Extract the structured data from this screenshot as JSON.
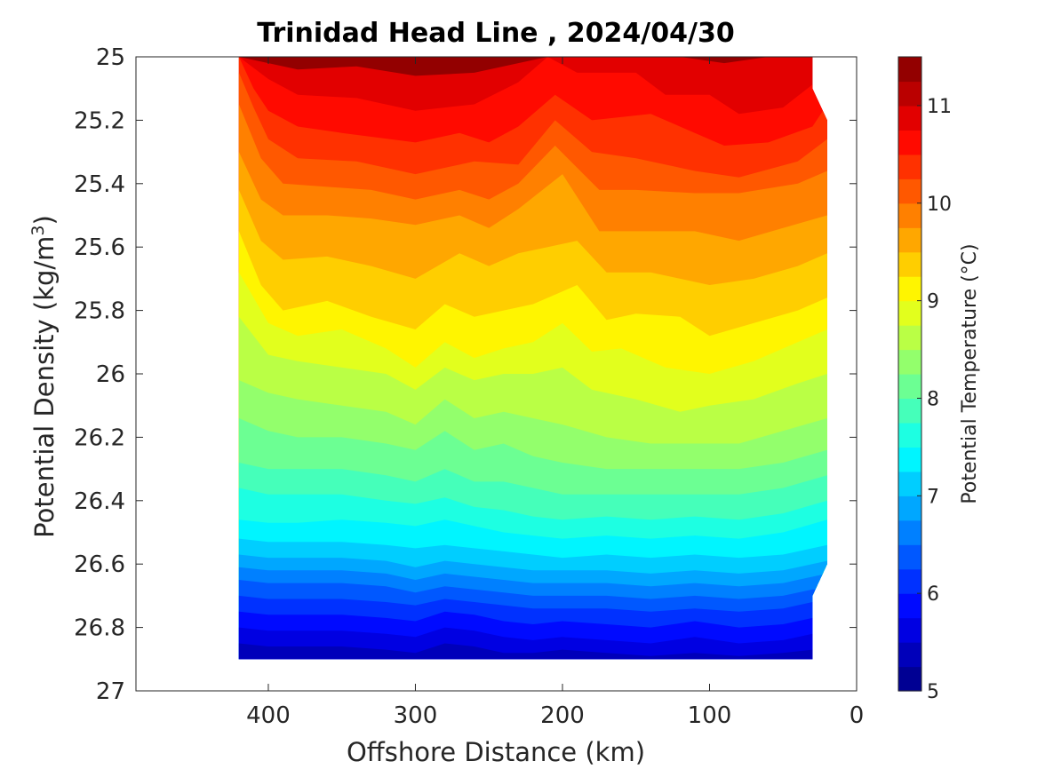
{
  "chart_data": {
    "type": "heatmap",
    "subtype": "filled-contour",
    "title": "Trinidad Head Line , 2024/04/30",
    "xlabel": "Offshore Distance (km)",
    "ylabel": "Potential Density (kg/m",
    "ylabel_superscript": "3",
    "ylabel_close": ")",
    "xlim": [
      490,
      0
    ],
    "ylim": [
      27,
      25
    ],
    "x_reversed": true,
    "y_reversed": true,
    "xticks": [
      400,
      300,
      200,
      100,
      0
    ],
    "xtick_labels": [
      "400",
      "300",
      "200",
      "100",
      "0"
    ],
    "yticks": [
      25,
      25.2,
      25.4,
      25.6,
      25.8,
      26,
      26.2,
      26.4,
      26.6,
      26.8,
      27
    ],
    "ytick_labels": [
      "25",
      "25.2",
      "25.4",
      "25.6",
      "25.8",
      "26",
      "26.2",
      "26.4",
      "26.6",
      "26.8",
      "27"
    ],
    "colorbar": {
      "label": "Potential Temperature (°C)",
      "range": [
        5,
        11.5
      ],
      "ticks": [
        5,
        6,
        7,
        8,
        9,
        10,
        11
      ],
      "tick_labels": [
        "5",
        "6",
        "7",
        "8",
        "9",
        "10",
        "11"
      ],
      "level_step": 0.25,
      "colormap": "jet"
    },
    "data_extent": {
      "x_stations_km": [
        420,
        400,
        380,
        360,
        340,
        320,
        300,
        280,
        260,
        240,
        220,
        200,
        180,
        160,
        140,
        120,
        100,
        80,
        60,
        40,
        30
      ],
      "sigma_min": 25,
      "sigma_max": 26.9
    },
    "isotherms": [
      {
        "temp": 11,
        "x": [
          420,
          400,
          380,
          340,
          300,
          260,
          230,
          210,
          190,
          140,
          120,
          90,
          60,
          35
        ],
        "sigma": [
          25.0,
          25.02,
          25.04,
          25.03,
          25.06,
          25.05,
          25.02,
          25.0,
          25.0,
          25.0,
          25.0,
          25.02,
          25.0,
          25.0
        ]
      },
      {
        "temp": 10.75,
        "x": [
          420,
          400,
          380,
          340,
          300,
          260,
          230,
          210,
          190,
          150,
          130,
          100,
          80,
          50,
          28
        ],
        "sigma": [
          25.0,
          25.07,
          25.12,
          25.13,
          25.17,
          25.15,
          25.08,
          25.0,
          25.05,
          25.05,
          25.12,
          25.12,
          25.18,
          25.16,
          25.08
        ]
      },
      {
        "temp": 10.5,
        "x": [
          420,
          410,
          400,
          380,
          350,
          300,
          270,
          250,
          230,
          205,
          180,
          140,
          110,
          90,
          60,
          30,
          20
        ],
        "sigma": [
          25.0,
          25.1,
          25.17,
          25.22,
          25.24,
          25.27,
          25.24,
          25.27,
          25.22,
          25.12,
          25.2,
          25.18,
          25.24,
          25.28,
          25.27,
          25.22,
          25.15
        ]
      },
      {
        "temp": 10.25,
        "x": [
          420,
          410,
          400,
          380,
          340,
          300,
          260,
          230,
          205,
          180,
          150,
          110,
          80,
          40,
          20
        ],
        "sigma": [
          25.05,
          25.16,
          25.26,
          25.32,
          25.33,
          25.37,
          25.33,
          25.34,
          25.2,
          25.3,
          25.32,
          25.36,
          25.38,
          25.33,
          25.26
        ]
      },
      {
        "temp": 10,
        "x": [
          420,
          405,
          390,
          360,
          330,
          300,
          270,
          250,
          230,
          205,
          175,
          150,
          110,
          80,
          40,
          20
        ],
        "sigma": [
          25.15,
          25.32,
          25.4,
          25.41,
          25.42,
          25.45,
          25.42,
          25.45,
          25.4,
          25.28,
          25.42,
          25.42,
          25.43,
          25.43,
          25.4,
          25.36
        ]
      },
      {
        "temp": 9.75,
        "x": [
          420,
          405,
          390,
          360,
          330,
          300,
          270,
          250,
          230,
          200,
          175,
          150,
          110,
          80,
          50,
          20
        ],
        "sigma": [
          25.3,
          25.45,
          25.5,
          25.5,
          25.51,
          25.53,
          25.5,
          25.54,
          25.48,
          25.37,
          25.55,
          25.55,
          25.55,
          25.58,
          25.54,
          25.5
        ]
      },
      {
        "temp": 9.5,
        "x": [
          420,
          405,
          390,
          360,
          330,
          300,
          270,
          250,
          230,
          210,
          190,
          170,
          140,
          100,
          70,
          40,
          20
        ],
        "sigma": [
          25.42,
          25.58,
          25.64,
          25.63,
          25.66,
          25.7,
          25.62,
          25.66,
          25.62,
          25.6,
          25.58,
          25.68,
          25.68,
          25.72,
          25.7,
          25.66,
          25.62
        ]
      },
      {
        "temp": 9.25,
        "x": [
          420,
          405,
          390,
          360,
          330,
          300,
          280,
          260,
          240,
          220,
          190,
          170,
          150,
          120,
          100,
          70,
          40,
          20
        ],
        "sigma": [
          25.55,
          25.72,
          25.8,
          25.77,
          25.82,
          25.86,
          25.78,
          25.82,
          25.8,
          25.78,
          25.72,
          25.83,
          25.81,
          25.82,
          25.88,
          25.84,
          25.8,
          25.76
        ]
      },
      {
        "temp": 9,
        "x": [
          420,
          400,
          380,
          350,
          320,
          300,
          280,
          260,
          240,
          220,
          200,
          180,
          160,
          130,
          100,
          70,
          40,
          20
        ],
        "sigma": [
          25.68,
          25.84,
          25.88,
          25.86,
          25.92,
          25.98,
          25.9,
          25.95,
          25.92,
          25.9,
          25.84,
          25.93,
          25.92,
          25.98,
          26.0,
          25.96,
          25.9,
          25.86
        ]
      },
      {
        "temp": 8.75,
        "x": [
          420,
          400,
          380,
          350,
          320,
          300,
          280,
          260,
          240,
          220,
          200,
          180,
          150,
          120,
          100,
          70,
          40,
          20
        ],
        "sigma": [
          25.82,
          25.94,
          25.96,
          25.98,
          26.0,
          26.05,
          25.98,
          26.02,
          26.0,
          26.0,
          25.98,
          26.05,
          26.08,
          26.12,
          26.1,
          26.08,
          26.03,
          26.0
        ]
      },
      {
        "temp": 8.5,
        "x": [
          420,
          400,
          380,
          350,
          320,
          300,
          280,
          260,
          240,
          220,
          200,
          170,
          140,
          110,
          80,
          50,
          20
        ],
        "sigma": [
          26.02,
          26.06,
          26.08,
          26.1,
          26.12,
          26.16,
          26.08,
          26.14,
          26.12,
          26.14,
          26.16,
          26.2,
          26.22,
          26.22,
          26.22,
          26.18,
          26.14
        ]
      },
      {
        "temp": 8.25,
        "x": [
          420,
          400,
          380,
          350,
          320,
          300,
          280,
          260,
          240,
          220,
          200,
          170,
          140,
          110,
          80,
          50,
          20
        ],
        "sigma": [
          26.14,
          26.18,
          26.2,
          26.2,
          26.22,
          26.24,
          26.18,
          26.24,
          26.22,
          26.26,
          26.28,
          26.3,
          26.3,
          26.3,
          26.3,
          26.28,
          26.24
        ]
      },
      {
        "temp": 8,
        "x": [
          420,
          400,
          380,
          350,
          320,
          300,
          280,
          260,
          240,
          220,
          200,
          170,
          140,
          110,
          80,
          50,
          20
        ],
        "sigma": [
          26.28,
          26.3,
          26.3,
          26.3,
          26.32,
          26.34,
          26.3,
          26.34,
          26.34,
          26.36,
          26.38,
          26.38,
          26.38,
          26.38,
          26.38,
          26.36,
          26.32
        ]
      },
      {
        "temp": 7.75,
        "x": [
          420,
          400,
          380,
          350,
          320,
          300,
          280,
          260,
          240,
          220,
          200,
          170,
          140,
          110,
          80,
          50,
          20
        ],
        "sigma": [
          26.36,
          26.38,
          26.38,
          26.38,
          26.4,
          26.41,
          26.39,
          26.42,
          26.43,
          26.45,
          26.46,
          26.45,
          26.46,
          26.45,
          26.46,
          26.44,
          26.4
        ]
      },
      {
        "temp": 7.5,
        "x": [
          420,
          400,
          380,
          350,
          320,
          300,
          280,
          260,
          240,
          220,
          200,
          170,
          140,
          110,
          80,
          50,
          20
        ],
        "sigma": [
          26.46,
          26.47,
          26.47,
          26.46,
          26.47,
          26.48,
          26.46,
          26.48,
          26.5,
          26.51,
          26.52,
          26.51,
          26.52,
          26.51,
          26.52,
          26.5,
          26.46
        ]
      },
      {
        "temp": 7.25,
        "x": [
          420,
          400,
          380,
          350,
          320,
          300,
          280,
          260,
          240,
          220,
          200,
          170,
          140,
          110,
          80,
          50,
          20
        ],
        "sigma": [
          26.52,
          26.53,
          26.53,
          26.53,
          26.54,
          26.55,
          26.54,
          26.55,
          26.56,
          26.57,
          26.58,
          26.57,
          26.58,
          26.57,
          26.58,
          26.57,
          26.54
        ]
      },
      {
        "temp": 7,
        "x": [
          420,
          400,
          380,
          350,
          320,
          300,
          280,
          260,
          240,
          220,
          200,
          170,
          140,
          110,
          80,
          50,
          20
        ],
        "sigma": [
          26.57,
          26.58,
          26.58,
          26.58,
          26.59,
          26.61,
          26.59,
          26.6,
          26.61,
          26.62,
          26.62,
          26.62,
          26.63,
          26.62,
          26.63,
          26.62,
          26.59
        ]
      },
      {
        "temp": 6.75,
        "x": [
          420,
          400,
          380,
          350,
          320,
          300,
          280,
          260,
          240,
          220,
          200,
          170,
          140,
          110,
          80,
          50,
          20
        ],
        "sigma": [
          26.61,
          26.62,
          26.62,
          26.62,
          26.63,
          26.65,
          26.63,
          26.64,
          26.65,
          26.66,
          26.66,
          26.66,
          26.67,
          26.66,
          26.67,
          26.66,
          26.63
        ]
      },
      {
        "temp": 6.5,
        "x": [
          420,
          400,
          380,
          350,
          320,
          300,
          280,
          260,
          240,
          220,
          200,
          170,
          140,
          110,
          80,
          50,
          30
        ],
        "sigma": [
          26.65,
          26.66,
          26.66,
          26.66,
          26.67,
          26.69,
          26.67,
          26.68,
          26.69,
          26.7,
          26.7,
          26.7,
          26.71,
          26.7,
          26.71,
          26.7,
          26.68
        ]
      },
      {
        "temp": 6.25,
        "x": [
          420,
          400,
          380,
          350,
          320,
          300,
          280,
          260,
          240,
          220,
          200,
          170,
          140,
          110,
          80,
          50,
          30
        ],
        "sigma": [
          26.7,
          26.71,
          26.71,
          26.71,
          26.72,
          26.73,
          26.71,
          26.72,
          26.73,
          26.74,
          26.74,
          26.74,
          26.75,
          26.74,
          26.75,
          26.74,
          26.72
        ]
      },
      {
        "temp": 6,
        "x": [
          420,
          400,
          380,
          350,
          320,
          300,
          280,
          260,
          240,
          220,
          200,
          170,
          140,
          110,
          80,
          50,
          30
        ],
        "sigma": [
          26.75,
          26.76,
          26.76,
          26.76,
          26.77,
          26.78,
          26.75,
          26.76,
          26.78,
          26.79,
          26.78,
          26.79,
          26.8,
          26.78,
          26.8,
          26.79,
          26.77
        ]
      },
      {
        "temp": 5.75,
        "x": [
          420,
          400,
          380,
          350,
          320,
          300,
          280,
          260,
          240,
          220,
          200,
          170,
          140,
          110,
          80,
          50,
          30
        ],
        "sigma": [
          26.8,
          26.81,
          26.81,
          26.81,
          26.82,
          26.83,
          26.8,
          26.81,
          26.83,
          26.84,
          26.83,
          26.84,
          26.85,
          26.83,
          26.85,
          26.84,
          26.82
        ]
      },
      {
        "temp": 5.5,
        "x": [
          420,
          400,
          380,
          350,
          320,
          300,
          280,
          260,
          240,
          220,
          200,
          170,
          140,
          110,
          80,
          50,
          30
        ],
        "sigma": [
          26.85,
          26.86,
          26.86,
          26.86,
          26.87,
          26.88,
          26.85,
          26.86,
          26.88,
          26.88,
          26.87,
          26.88,
          26.89,
          26.88,
          26.89,
          26.88,
          26.87
        ]
      }
    ]
  }
}
